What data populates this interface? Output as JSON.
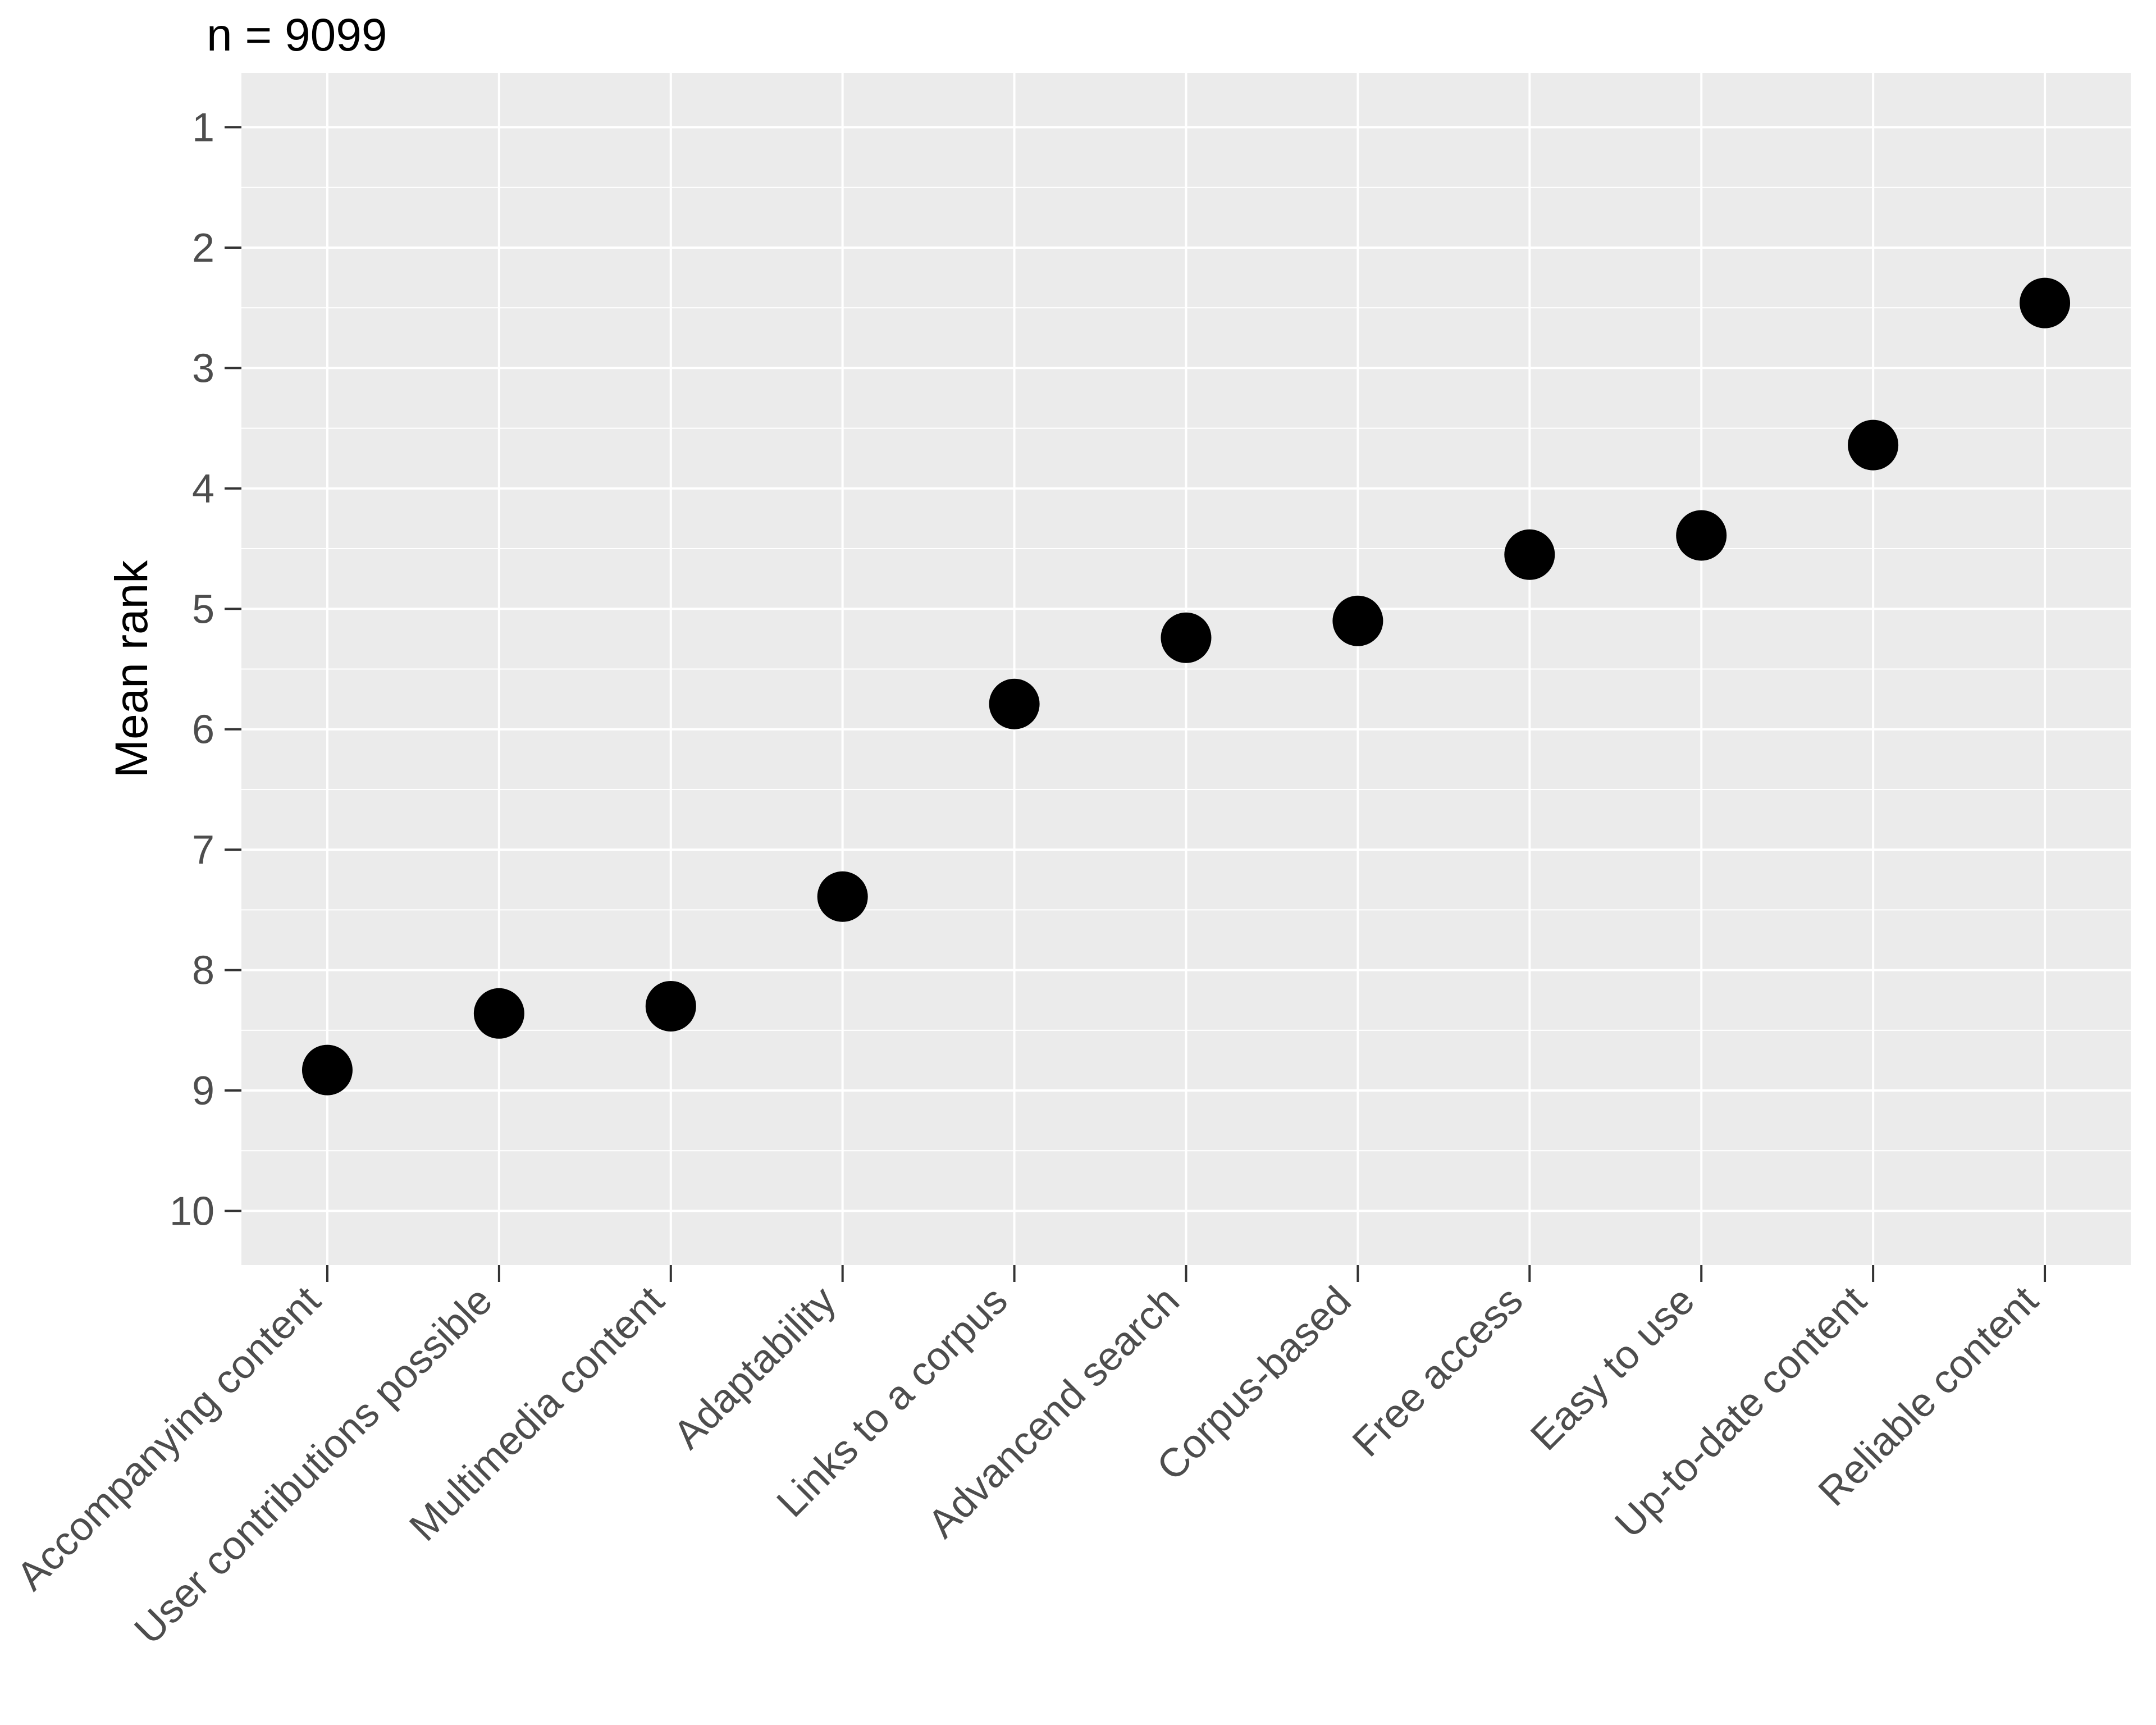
{
  "title": "n = 9099",
  "sample_size_annotation": "n = 9099",
  "chart_data": {
    "type": "scatter",
    "title": "n = 9099",
    "xlabel": "",
    "ylabel": "Mean rank",
    "categories": [
      "Accompanying content",
      "User contributions possible",
      "Multimedia content",
      "Adaptability",
      "Links to a corpus",
      "Advancend search",
      "Corpus-based",
      "Free access",
      "Easy to use",
      "Up-to-date content",
      "Reliable content"
    ],
    "values": [
      8.83,
      8.36,
      8.3,
      7.39,
      5.79,
      5.24,
      5.1,
      4.55,
      4.39,
      3.64,
      2.46
    ],
    "y_ticks": [
      1,
      2,
      3,
      4,
      5,
      6,
      7,
      8,
      9,
      10
    ],
    "ylim": [
      0.55,
      10.45
    ],
    "y_axis_reversed": true,
    "grid": "major horizontal + vertical white lines, minor horizontal at half ranks",
    "legend": "none",
    "colors": {
      "point": "#000000",
      "panel_background": "#EBEBEB",
      "gridline": "#FFFFFF",
      "axis_tick_text": "#4D4D4D",
      "axis_tick_mark": "#333333",
      "axis_title": "#000000",
      "plot_background": "#FFFFFF"
    }
  }
}
